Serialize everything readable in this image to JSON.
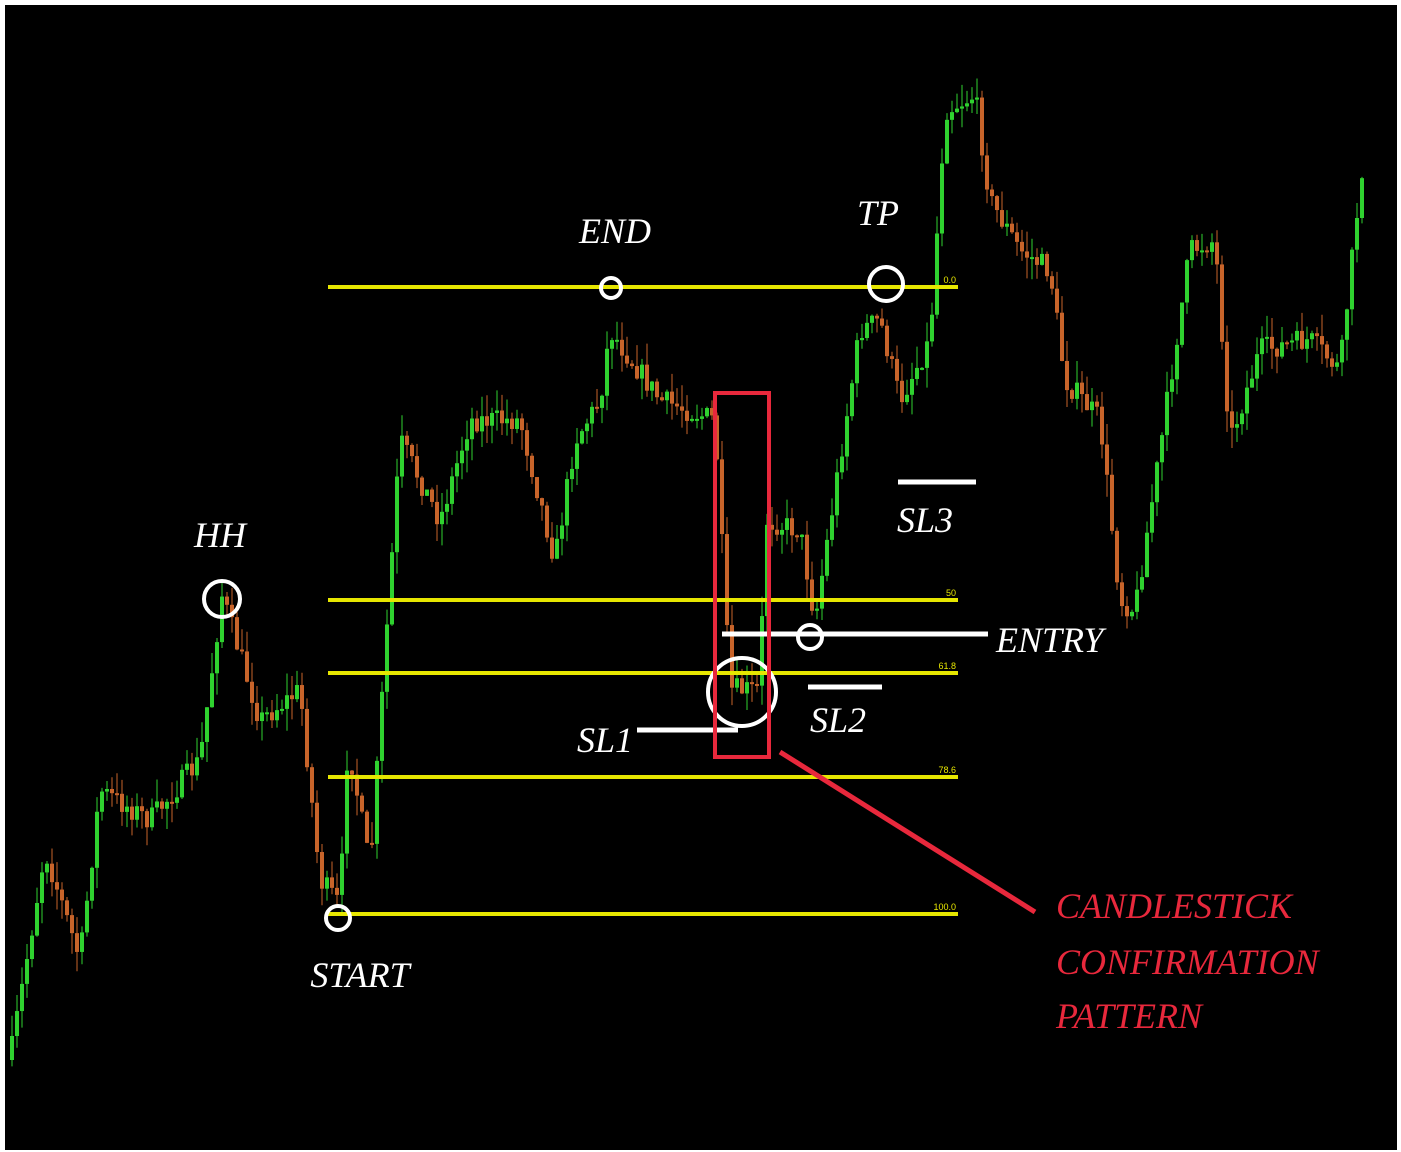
{
  "annotations": {
    "hh": "HH",
    "end": "END",
    "tp": "TP",
    "sl3": "SL3",
    "entry": "ENTRY",
    "sl2": "SL2",
    "sl1": "SL1",
    "start": "START",
    "pattern": [
      "CANDLESTICK",
      "CONFIRMATION",
      "PATTERN"
    ]
  },
  "fib_levels": [
    "0.0",
    "50",
    "61.8",
    "78.6",
    "100.0"
  ]
}
